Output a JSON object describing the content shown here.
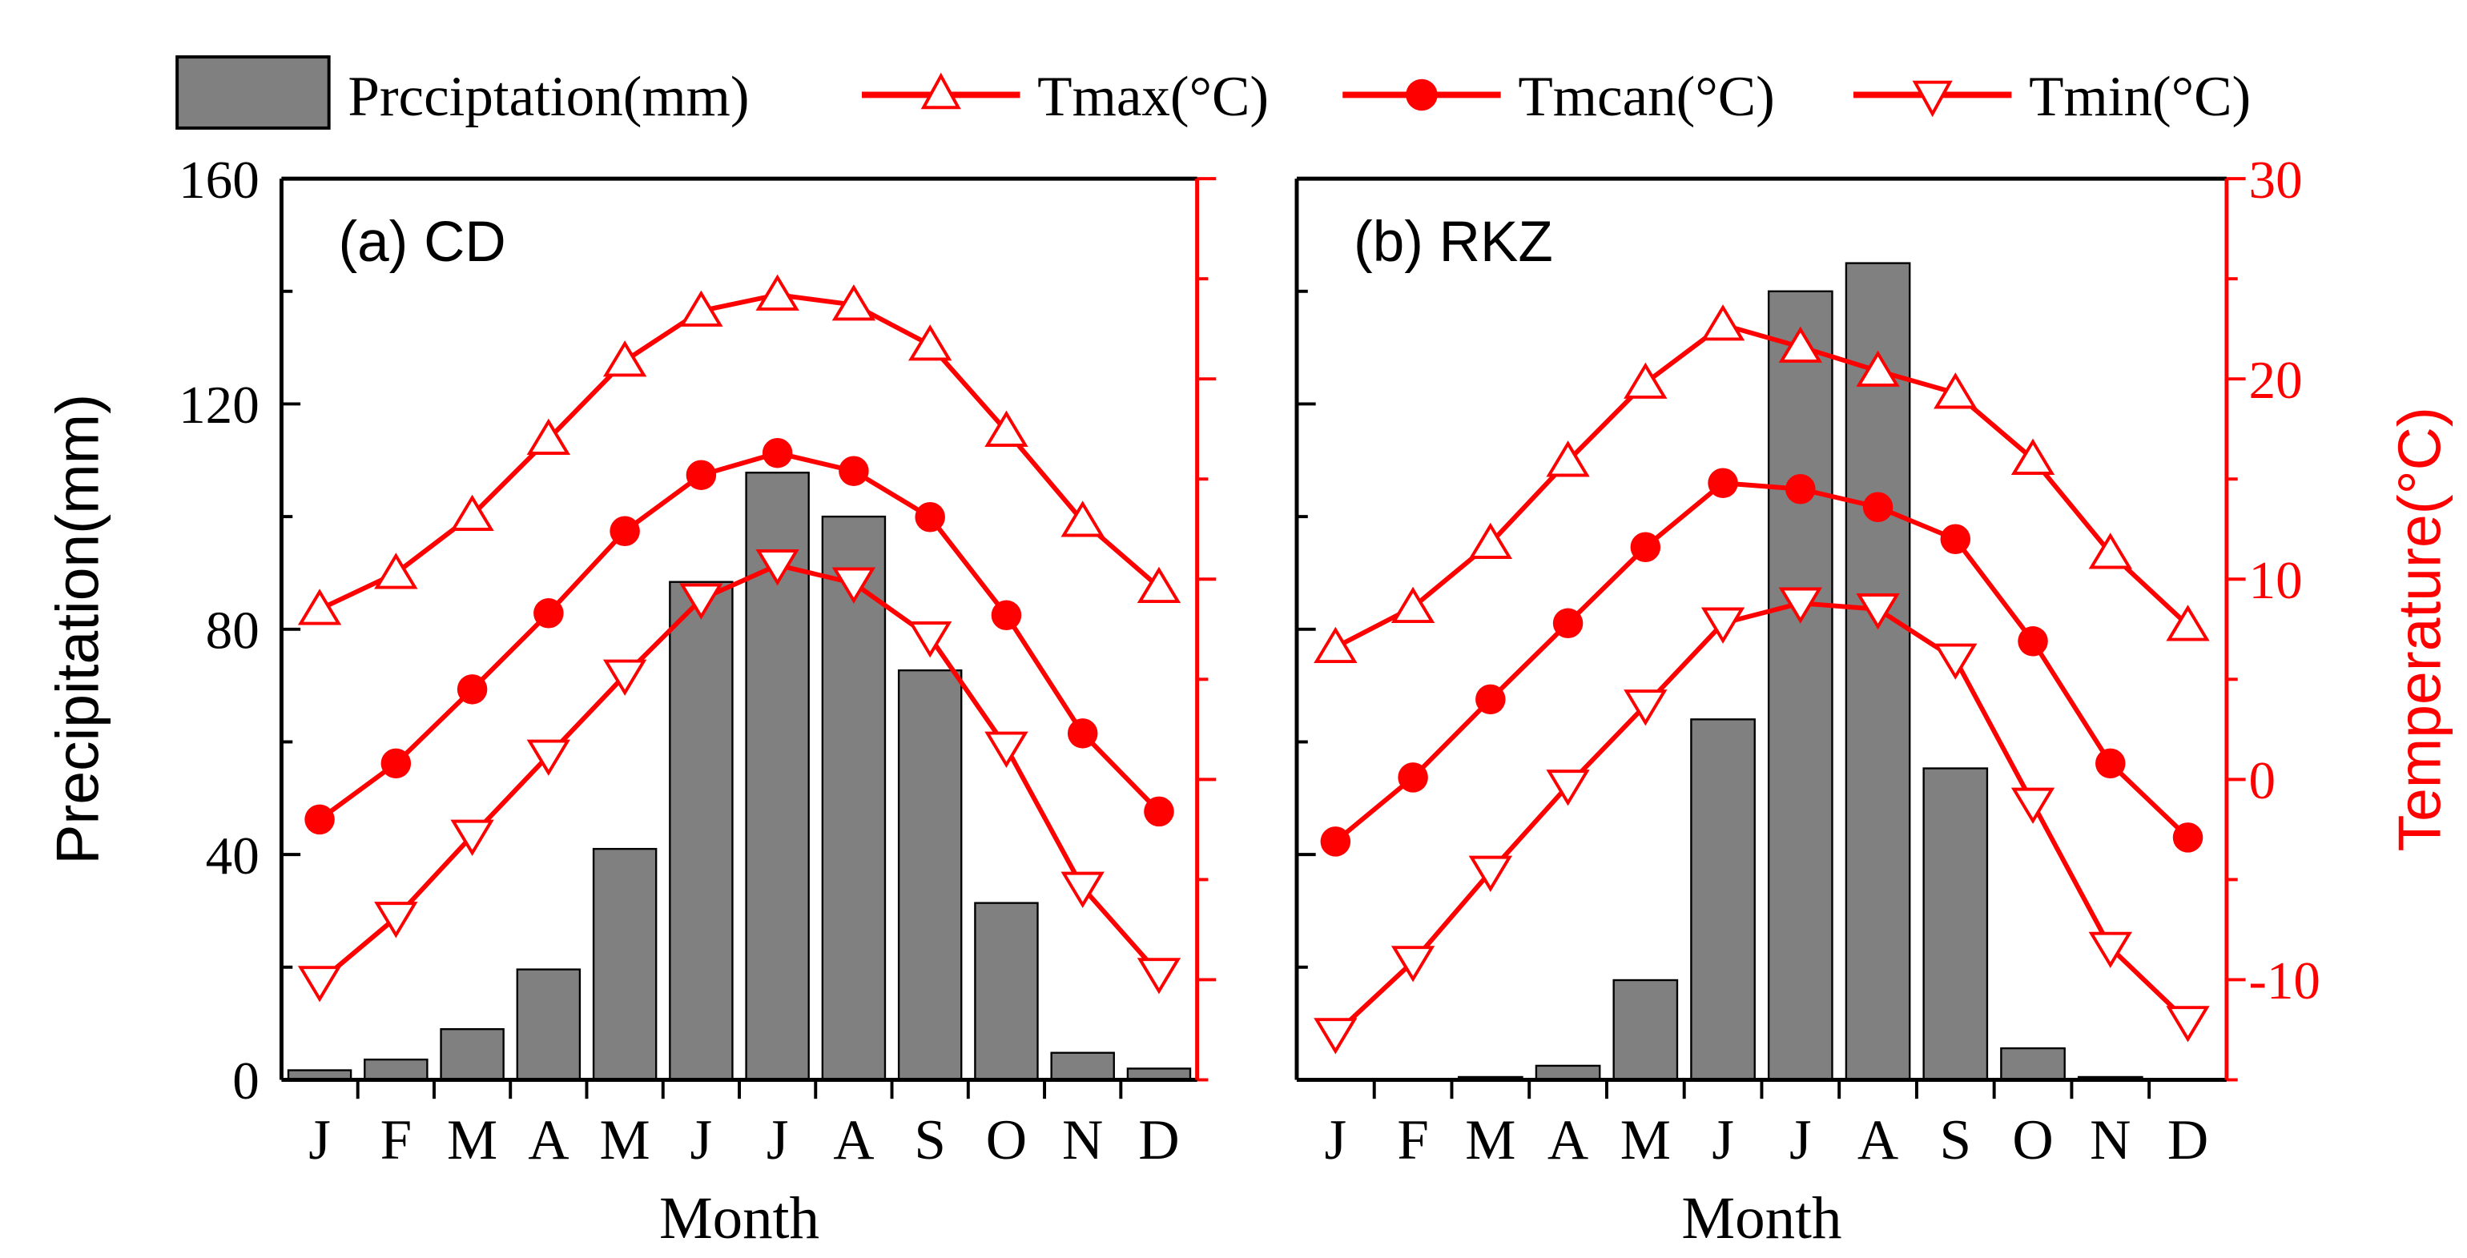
{
  "chart_data": [
    {
      "type": "bar+line",
      "panel_label": "(a) CD",
      "categories": [
        "J",
        "F",
        "M",
        "A",
        "M",
        "J",
        "J",
        "A",
        "S",
        "O",
        "N",
        "D"
      ],
      "xlabel": "Month",
      "ylabel": "Precipitation(mm)",
      "ylim": [
        0,
        160
      ],
      "yticks": [
        "0",
        "40",
        "80",
        "120",
        "160"
      ],
      "y2lim": [
        -15,
        30
      ],
      "y2ticks": [],
      "precipitation": [
        1.7,
        3.6,
        9,
        19.6,
        41,
        88.4,
        107.8,
        100,
        72.7,
        31.4,
        4.8,
        2
      ],
      "series": [
        {
          "name": "Tmax(°C)",
          "values": [
            8.5,
            10.3,
            13.2,
            17,
            20.9,
            23.4,
            24.2,
            23.7,
            21.7,
            17.4,
            12.9,
            9.6
          ]
        },
        {
          "name": "Tmcan(°C)",
          "values": [
            -2.0,
            0.8,
            4.5,
            8.3,
            12.4,
            15.2,
            16.3,
            15.4,
            13.1,
            8.2,
            2.3,
            -1.6
          ]
        },
        {
          "name": "Tmin(°C)",
          "values": [
            -10.1,
            -6.9,
            -2.8,
            1.2,
            5.2,
            9.0,
            10.7,
            9.8,
            7.1,
            1.6,
            -5.4,
            -9.7
          ]
        }
      ]
    },
    {
      "type": "bar+line",
      "panel_label": "(b) RKZ",
      "categories": [
        "J",
        "F",
        "M",
        "A",
        "M",
        "J",
        "J",
        "A",
        "S",
        "O",
        "N",
        "D"
      ],
      "xlabel": "Month",
      "ylabel": "",
      "ylim": [
        0,
        160
      ],
      "yticks": [],
      "y2label": "Temperature(°C)",
      "y2lim": [
        -15,
        30
      ],
      "y2ticks": [
        "-10",
        "0",
        "10",
        "20",
        "30"
      ],
      "precipitation": [
        0,
        0,
        0.5,
        2.5,
        17.7,
        64,
        140,
        145,
        55.3,
        5.6,
        0.5,
        0
      ],
      "series": [
        {
          "name": "Tmax(°C)",
          "values": [
            6.6,
            8.6,
            11.8,
            15.9,
            19.8,
            22.7,
            21.6,
            20.4,
            19.3,
            16.0,
            11.3,
            7.7
          ]
        },
        {
          "name": "Tmcan(°C)",
          "values": [
            -3.1,
            0.1,
            4.0,
            7.8,
            11.6,
            14.8,
            14.5,
            13.6,
            12.0,
            6.9,
            0.8,
            -2.9
          ]
        },
        {
          "name": "Tmin(°C)",
          "values": [
            -12.7,
            -9.1,
            -4.6,
            -0.3,
            3.7,
            7.8,
            8.8,
            8.5,
            6.0,
            -1.2,
            -8.4,
            -12.1
          ]
        }
      ]
    }
  ],
  "legend": {
    "precipitation": "Prcciptation(mm)",
    "tmax": "Tmax(°C)",
    "tmean": "Tmcan(°C)",
    "tmin": "Tmin(°C)"
  },
  "colors": {
    "bar": "#808080",
    "line": "#ff0000",
    "axis": "#000000"
  }
}
